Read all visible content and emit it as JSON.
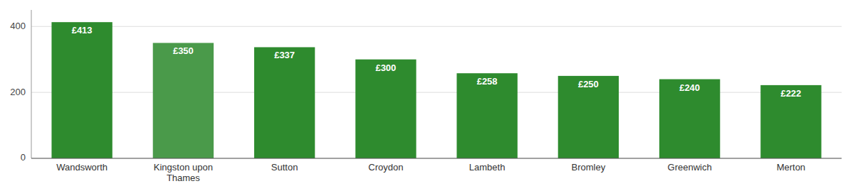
{
  "chart_data": {
    "type": "bar",
    "categories": [
      "Wandsworth",
      "Kingston upon\nThames",
      "Sutton",
      "Croydon",
      "Lambeth",
      "Bromley",
      "Greenwich",
      "Merton"
    ],
    "values": [
      413,
      350,
      337,
      300,
      258,
      250,
      240,
      222
    ],
    "value_labels": [
      "£413",
      "£350",
      "£337",
      "£300",
      "£258",
      "£250",
      "£240",
      "£222"
    ],
    "data_labels": true,
    "colors": [
      "#2e8b2e",
      "#4a9a4a",
      "#2e8b2e",
      "#2e8b2e",
      "#2e8b2e",
      "#2e8b2e",
      "#2e8b2e",
      "#2e8b2e"
    ],
    "ylim": [
      0,
      450
    ],
    "yticks": [
      0,
      200,
      400
    ],
    "grid": true
  }
}
